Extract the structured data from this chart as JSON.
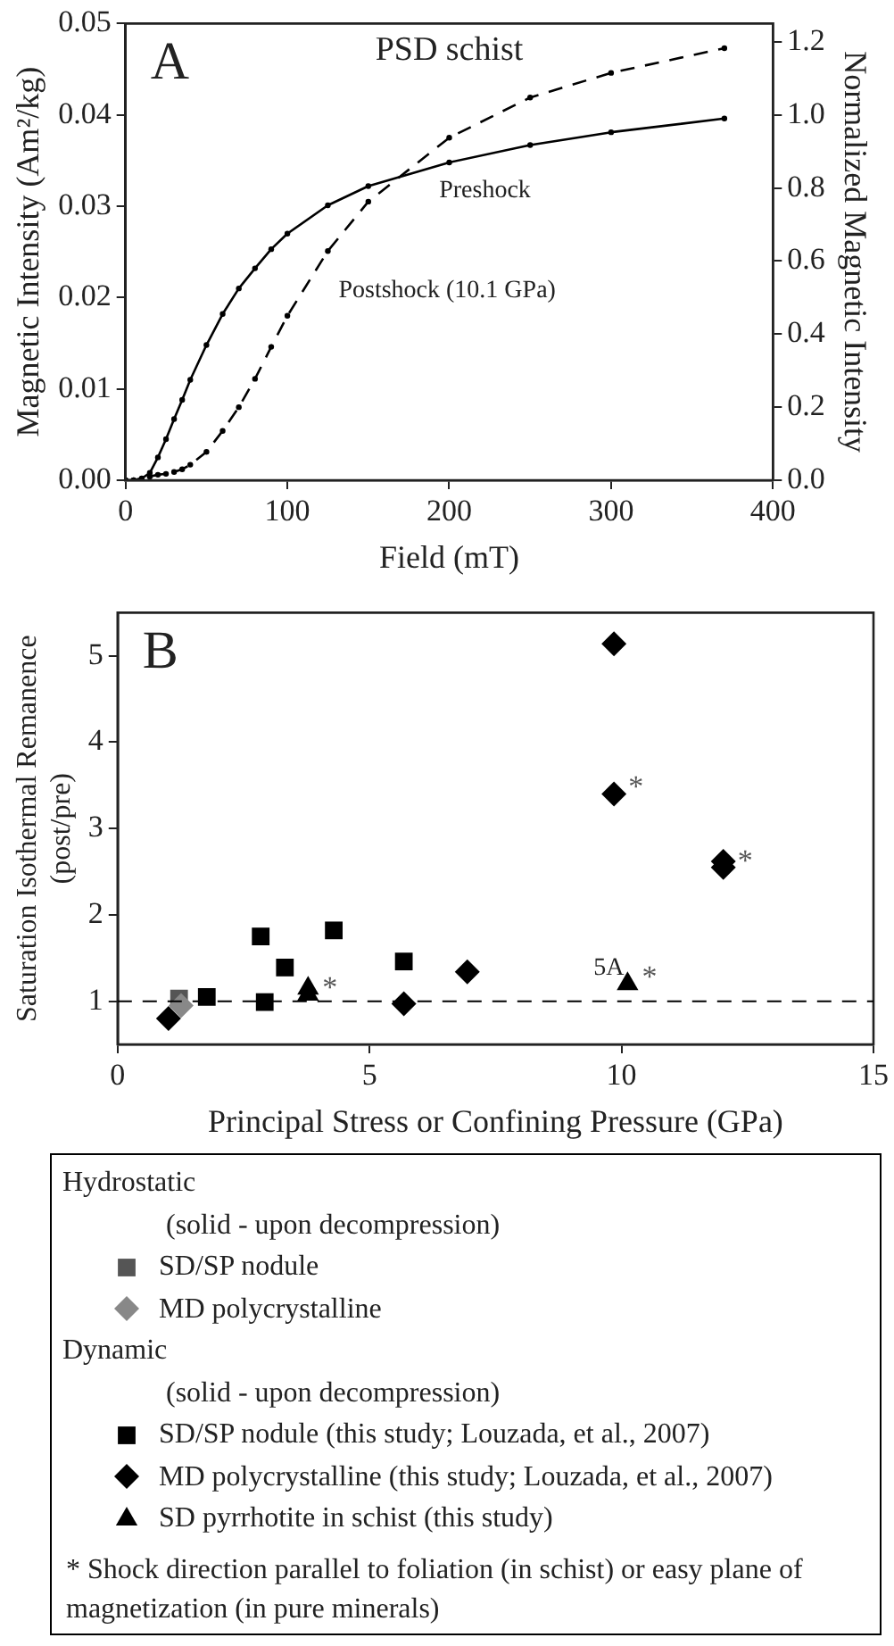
{
  "chart_data": [
    {
      "type": "line",
      "title": "PSD schist",
      "xlabel": "Field (mT)",
      "ylabel": "Magnetic Intensity (Am²/kg)",
      "y2label": "Normalized Magnetic Intensity",
      "x": [
        0,
        5,
        10,
        15,
        20,
        25,
        30,
        35,
        40,
        50,
        60,
        70,
        80,
        90,
        100,
        125,
        150,
        200,
        250,
        300,
        370
      ],
      "series": [
        {
          "name": "Preshock",
          "color": "#000000",
          "line_style": "solid",
          "values": [
            0,
            0,
            0.0002,
            0.0008,
            0.0025,
            0.0045,
            0.0067,
            0.0088,
            0.011,
            0.0148,
            0.0182,
            0.021,
            0.0232,
            0.0253,
            0.027,
            0.0301,
            0.0322,
            0.0348,
            0.0367,
            0.0381,
            0.0396
          ]
        },
        {
          "name": "Postshock (10.1 GPa)",
          "color": "#000000",
          "line_style": "dashed",
          "values": [
            0,
            0,
            null,
            0.0004,
            0.0006,
            0.0007,
            0.0009,
            0.0012,
            0.0017,
            0.0031,
            0.0054,
            0.008,
            0.0111,
            0.0146,
            0.018,
            0.0251,
            0.0305,
            0.0375,
            0.0419,
            0.0446,
            0.0473
          ]
        }
      ],
      "marker": "circle",
      "grid": false,
      "legend": false,
      "xlim": [
        0,
        400
      ],
      "xticks": [
        0,
        100,
        200,
        300,
        400
      ],
      "ylim": [
        0,
        0.05
      ],
      "yticks": [
        {
          "value": 0,
          "label": "0.00"
        },
        {
          "value": 0.01,
          "label": "0.01"
        },
        {
          "value": 0.02,
          "label": "0.02"
        },
        {
          "value": 0.03,
          "label": "0.03"
        },
        {
          "value": 0.04,
          "label": "0.04"
        },
        {
          "value": 0.05,
          "label": "0.05"
        }
      ],
      "y2lim": [
        0,
        1.25
      ],
      "y2ticks": [
        {
          "value": 0,
          "label": "0.0"
        },
        {
          "value": 0.2,
          "label": "0.2"
        },
        {
          "value": 0.4,
          "label": "0.4"
        },
        {
          "value": 0.6,
          "label": "0.6"
        },
        {
          "value": 0.8,
          "label": "0.8"
        },
        {
          "value": 1,
          "label": "1.0"
        },
        {
          "value": 1.2,
          "label": "1.2"
        }
      ],
      "annotations": [
        "A"
      ]
    },
    {
      "type": "scatter",
      "xlabel": "Principal Stress or Confining Pressure (GPa)",
      "ylabel": "Saturation Isothermal Remanence (post/pre)",
      "series": [
        {
          "name": "SD/SP nodule",
          "color": "#555555",
          "marker": "square",
          "x": [
            1.22
          ],
          "values": [
            1.03
          ]
        },
        {
          "name": "MD polycrystalline",
          "color": "#888888",
          "marker": "diamond",
          "x": [
            1.26
          ],
          "values": [
            0.95
          ]
        },
        {
          "name": "SD/SP nodule (this study; Louzada, et al., 2007)",
          "color": "#000000",
          "marker": "square",
          "x": [
            1.77,
            2.84,
            2.92,
            3.32,
            4.29,
            5.68
          ],
          "values": [
            1.05,
            1.75,
            0.99,
            1.39,
            1.82,
            1.46
          ]
        },
        {
          "name": "MD polycrystalline (this study; Louzada, et al., 2007)",
          "color": "#000000",
          "marker": "diamond",
          "x": [
            1.01,
            5.68,
            6.94,
            9.85,
            9.85,
            12.02,
            12.02
          ],
          "values": [
            0.8,
            0.97,
            1.34,
            5.14,
            3.4,
            2.55,
            2.62
          ]
        },
        {
          "name": "SD pyrrhotite in schist (this study)",
          "color": "#000000",
          "marker": "triangle",
          "x": [
            3.78,
            3.78,
            10.12
          ],
          "values": [
            1.15,
            1.08,
            1.2
          ]
        }
      ],
      "grid": false,
      "legend": "bottom",
      "xlim": [
        0,
        15
      ],
      "xticks": [
        0,
        5,
        10,
        15
      ],
      "ylim": [
        0.5,
        5.5
      ],
      "yticks": [
        1,
        2,
        3,
        4,
        5
      ],
      "ref_lines": [
        {
          "axis": "y",
          "value": 1,
          "color": "#000000",
          "line_style": "dashed"
        }
      ],
      "annotations": [
        "B",
        "Hydrostatic",
        "(solid - upon decompression)",
        "Dynamic",
        "(solid - upon decompression)",
        "* Shock direction parallel to foliation (in schist) or easy plane of magnetization (in pure minerals)",
        {
          "text": "*",
          "x": 3.78,
          "y": 1.08
        },
        {
          "text": "*",
          "x": 9.85,
          "y": 3.4
        },
        {
          "text": "*",
          "x": 12.02,
          "y": 2.55
        },
        {
          "text": "*",
          "x": 10.12,
          "y": 1.2
        },
        {
          "text": "5A",
          "x": 10.12,
          "y": 1.2
        }
      ]
    }
  ]
}
